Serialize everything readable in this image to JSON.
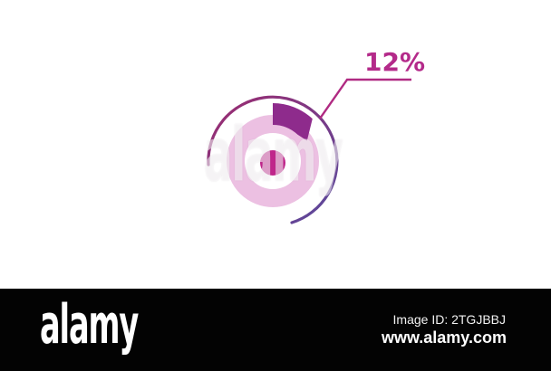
{
  "image": {
    "background": "#ffffff"
  },
  "chart_data": {
    "type": "pie",
    "style": "donut percentage diagram with callout",
    "percentage": 12,
    "label": "12%",
    "slices": [
      {
        "name": "highlighted-segment",
        "value": 12,
        "color": "#8e2b8c"
      },
      {
        "name": "remainder-track",
        "value": 88,
        "color": "#ecc0e2"
      }
    ],
    "legend_position": "none",
    "colors": {
      "segment": "#8e2b8c",
      "track": "#ecc0e2",
      "center_dot": "#c0258b",
      "ring_gradient_start": "#9e2a6e",
      "ring_gradient_end": "#584a9e",
      "callout": "#b02a82",
      "label_text": "#b42a8a"
    }
  },
  "watermark": {
    "center_text": "alamy"
  },
  "footer": {
    "background": "#030303",
    "logo_text": "alamy",
    "image_id": "Image ID: 2TGJBBJ",
    "website": "www.alamy.com"
  }
}
